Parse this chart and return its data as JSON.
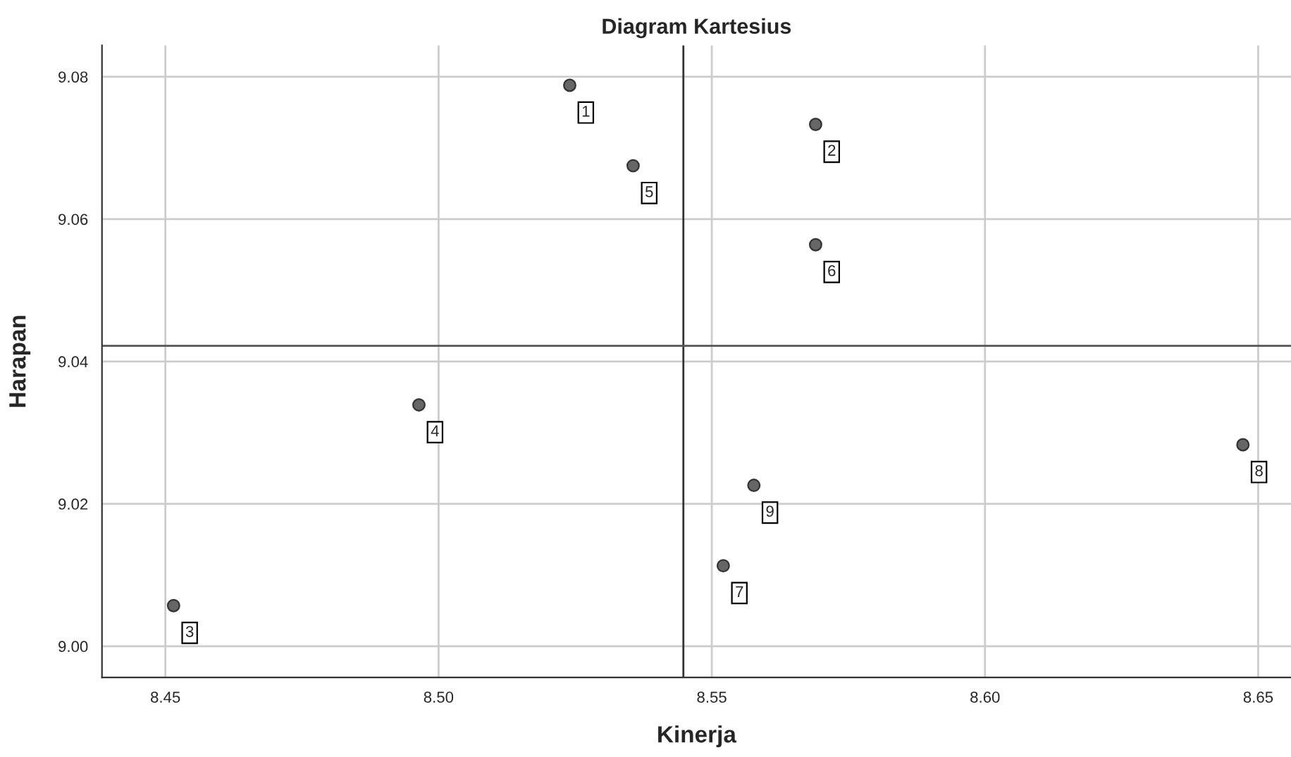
{
  "chart_data": {
    "type": "scatter",
    "title": "Diagram Kartesius",
    "xlabel": "Kinerja",
    "ylabel": "Harapan",
    "x": [
      8.524,
      8.569,
      8.4515,
      8.4964,
      8.5356,
      8.569,
      8.5521,
      8.6472,
      8.5577
    ],
    "series": [
      {
        "color": "#666666",
        "values": [
          9.0788,
          9.0733,
          9.0057,
          9.0339,
          9.0675,
          9.0564,
          9.0113,
          9.0283,
          9.0226
        ]
      }
    ],
    "value_labels": [
      "1",
      "2",
      "3",
      "4",
      "5",
      "6",
      "7",
      "8",
      "9"
    ],
    "xlim": [
      8.4384,
      8.656
    ],
    "ylim": [
      8.9956,
      9.0844
    ],
    "xticks": [
      {
        "value": 8.45,
        "label": "8.45"
      },
      {
        "value": 8.5,
        "label": "8.50"
      },
      {
        "value": 8.55,
        "label": "8.55"
      },
      {
        "value": 8.6,
        "label": "8.60"
      },
      {
        "value": 8.65,
        "label": "8.65"
      }
    ],
    "yticks": [
      {
        "value": 9.0,
        "label": "9.00"
      },
      {
        "value": 9.02,
        "label": "9.02"
      },
      {
        "value": 9.04,
        "label": "9.04"
      },
      {
        "value": 9.06,
        "label": "9.06"
      },
      {
        "value": 9.08,
        "label": "9.08"
      }
    ],
    "ref_lines": [
      {
        "axis": "x",
        "value": 8.5448,
        "color": "#333333"
      },
      {
        "axis": "y",
        "value": 9.0422,
        "color": "#555555"
      }
    ],
    "grid": true,
    "marker": "circle"
  }
}
